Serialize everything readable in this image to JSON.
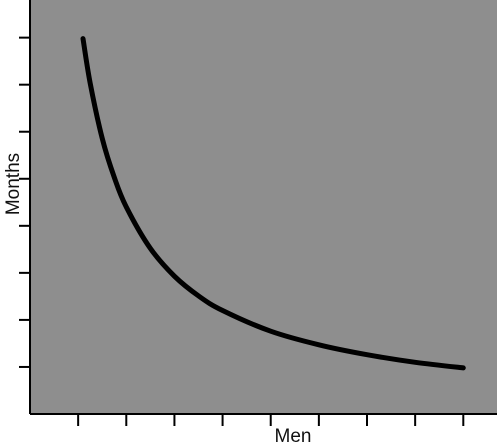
{
  "chart_data": {
    "type": "line",
    "title": "",
    "xlabel": "Men",
    "ylabel": "Months",
    "x_tick_count": 9,
    "y_tick_count": 8,
    "show_tick_labels": false,
    "grid": false,
    "colors": {
      "plot_background": "#8e8e8e",
      "line": "#000000",
      "axis": "#000000"
    },
    "series": [
      {
        "x": [
          1.1,
          1.25,
          1.5,
          1.75,
          2,
          2.5,
          3,
          3.5,
          4,
          5,
          6,
          7,
          8,
          9
        ],
        "values": [
          7.98,
          7.03,
          5.86,
          5.03,
          4.4,
          3.52,
          2.93,
          2.51,
          2.2,
          1.76,
          1.47,
          1.26,
          1.1,
          0.98
        ]
      }
    ],
    "xlim": [
      0,
      9.7
    ],
    "ylim": [
      0,
      8.8
    ]
  }
}
